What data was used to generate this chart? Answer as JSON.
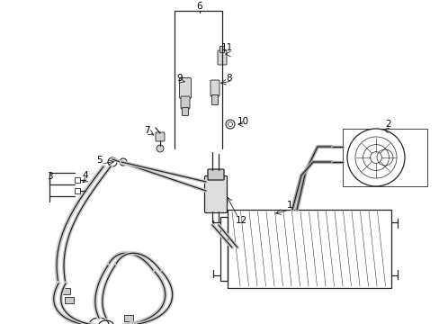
{
  "background_color": "#ffffff",
  "line_color": "#222222",
  "label_color": "#000000",
  "fig_w": 4.89,
  "fig_h": 3.6,
  "dpi": 100
}
